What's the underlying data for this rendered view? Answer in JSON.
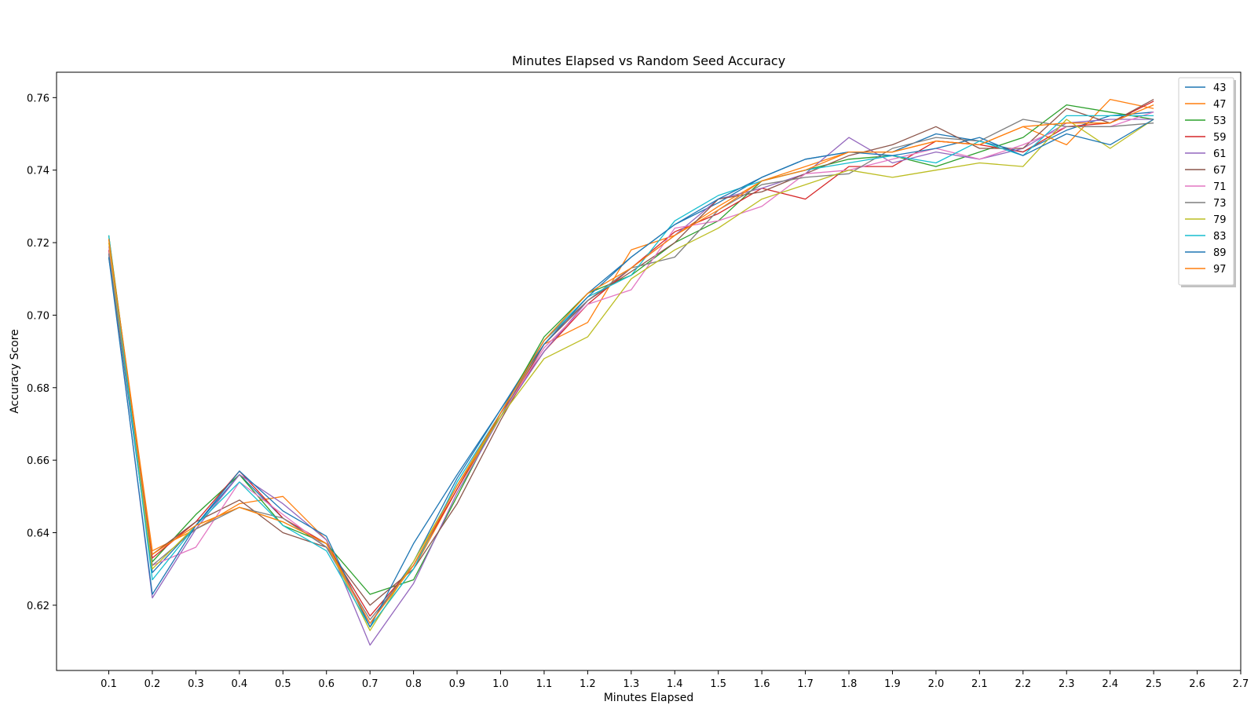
{
  "chart_data": {
    "type": "line",
    "title": "Minutes Elapsed vs Random Seed Accuracy",
    "xlabel": "Minutes Elapsed",
    "ylabel": "Accuracy Score",
    "xlim": [
      -0.02,
      2.7
    ],
    "ylim": [
      0.602,
      0.767
    ],
    "xticks": [
      "0.1",
      "0.2",
      "0.3",
      "0.4",
      "0.5",
      "0.6",
      "0.7",
      "0.8",
      "0.9",
      "1.0",
      "1.1",
      "1.2",
      "1.3",
      "1.4",
      "1.5",
      "1.6",
      "1.7",
      "1.8",
      "1.9",
      "2.0",
      "2.1",
      "2.2",
      "2.3",
      "2.4",
      "2.5",
      "2.6",
      "2.7"
    ],
    "yticks": [
      "0.62",
      "0.64",
      "0.66",
      "0.68",
      "0.70",
      "0.72",
      "0.74",
      "0.76"
    ],
    "grid": false,
    "legend_position": "top-right",
    "x": [
      0.1,
      0.2,
      0.3,
      0.4,
      0.5,
      0.6,
      0.7,
      0.8,
      0.9,
      1.0,
      1.1,
      1.2,
      1.3,
      1.4,
      1.5,
      1.6,
      1.7,
      1.8,
      1.9,
      2.0,
      2.1,
      2.2,
      2.3,
      2.4,
      2.5
    ],
    "series": [
      {
        "name": "43",
        "color": "#1f77b4",
        "values": [
          0.717,
          0.629,
          0.642,
          0.656,
          0.644,
          0.636,
          0.615,
          0.632,
          0.655,
          0.674,
          0.693,
          0.706,
          0.716,
          0.725,
          0.731,
          0.738,
          0.743,
          0.745,
          0.745,
          0.75,
          0.748,
          0.745,
          0.751,
          0.755,
          0.756
        ]
      },
      {
        "name": "47",
        "color": "#ff7f0e",
        "values": [
          0.721,
          0.635,
          0.641,
          0.648,
          0.65,
          0.638,
          0.614,
          0.63,
          0.652,
          0.672,
          0.692,
          0.698,
          0.718,
          0.722,
          0.73,
          0.737,
          0.741,
          0.745,
          0.745,
          0.748,
          0.747,
          0.752,
          0.747,
          0.7595,
          0.757
        ]
      },
      {
        "name": "53",
        "color": "#2ca02c",
        "values": [
          0.722,
          0.632,
          0.645,
          0.656,
          0.642,
          0.637,
          0.623,
          0.627,
          0.65,
          0.673,
          0.694,
          0.706,
          0.711,
          0.72,
          0.726,
          0.737,
          0.74,
          0.743,
          0.744,
          0.741,
          0.745,
          0.749,
          0.758,
          0.756,
          0.754
        ]
      },
      {
        "name": "59",
        "color": "#d62728",
        "values": [
          0.718,
          0.633,
          0.643,
          0.657,
          0.644,
          0.637,
          0.617,
          0.631,
          0.652,
          0.673,
          0.69,
          0.703,
          0.713,
          0.723,
          0.728,
          0.735,
          0.732,
          0.741,
          0.741,
          0.748,
          0.747,
          0.745,
          0.752,
          0.753,
          0.759
        ]
      },
      {
        "name": "61",
        "color": "#9467bd",
        "values": [
          0.717,
          0.622,
          0.641,
          0.656,
          0.648,
          0.638,
          0.609,
          0.626,
          0.651,
          0.672,
          0.69,
          0.704,
          0.713,
          0.722,
          0.732,
          0.735,
          0.739,
          0.749,
          0.742,
          0.745,
          0.743,
          0.746,
          0.753,
          0.754,
          0.754
        ]
      },
      {
        "name": "67",
        "color": "#8c564b",
        "values": [
          0.716,
          0.634,
          0.643,
          0.649,
          0.64,
          0.636,
          0.62,
          0.63,
          0.648,
          0.671,
          0.692,
          0.704,
          0.712,
          0.72,
          0.732,
          0.734,
          0.739,
          0.744,
          0.747,
          0.752,
          0.746,
          0.746,
          0.757,
          0.753,
          0.7595
        ]
      },
      {
        "name": "71",
        "color": "#e377c2",
        "values": [
          0.719,
          0.631,
          0.636,
          0.654,
          0.645,
          0.636,
          0.615,
          0.631,
          0.653,
          0.672,
          0.691,
          0.703,
          0.707,
          0.724,
          0.726,
          0.73,
          0.739,
          0.74,
          0.743,
          0.746,
          0.743,
          0.747,
          0.752,
          0.752,
          0.756
        ]
      },
      {
        "name": "73",
        "color": "#7f7f7f",
        "values": [
          0.717,
          0.631,
          0.641,
          0.647,
          0.644,
          0.636,
          0.616,
          0.631,
          0.653,
          0.672,
          0.693,
          0.704,
          0.713,
          0.716,
          0.729,
          0.736,
          0.738,
          0.739,
          0.746,
          0.749,
          0.748,
          0.754,
          0.752,
          0.752,
          0.753
        ]
      },
      {
        "name": "79",
        "color": "#bcbd22",
        "values": [
          0.72,
          0.63,
          0.642,
          0.647,
          0.643,
          0.637,
          0.613,
          0.632,
          0.653,
          0.672,
          0.688,
          0.694,
          0.71,
          0.718,
          0.724,
          0.732,
          0.736,
          0.74,
          0.738,
          0.74,
          0.742,
          0.741,
          0.754,
          0.746,
          0.754
        ]
      },
      {
        "name": "83",
        "color": "#17becf",
        "values": [
          0.722,
          0.627,
          0.642,
          0.654,
          0.642,
          0.635,
          0.614,
          0.63,
          0.654,
          0.673,
          0.693,
          0.705,
          0.711,
          0.726,
          0.733,
          0.737,
          0.74,
          0.742,
          0.744,
          0.742,
          0.748,
          0.744,
          0.755,
          0.755,
          0.755
        ]
      },
      {
        "name": "89",
        "color": "#1f77b4",
        "values": [
          0.716,
          0.623,
          0.642,
          0.657,
          0.646,
          0.639,
          0.614,
          0.637,
          0.656,
          0.674,
          0.692,
          0.705,
          0.716,
          0.725,
          0.732,
          0.738,
          0.743,
          0.745,
          0.744,
          0.746,
          0.749,
          0.744,
          0.75,
          0.747,
          0.754
        ]
      },
      {
        "name": "97",
        "color": "#ff7f0e",
        "values": [
          0.721,
          0.634,
          0.642,
          0.647,
          0.643,
          0.637,
          0.615,
          0.631,
          0.653,
          0.673,
          0.693,
          0.706,
          0.713,
          0.722,
          0.729,
          0.737,
          0.74,
          0.745,
          0.745,
          0.748,
          0.747,
          0.752,
          0.753,
          0.753,
          0.758
        ]
      }
    ]
  }
}
